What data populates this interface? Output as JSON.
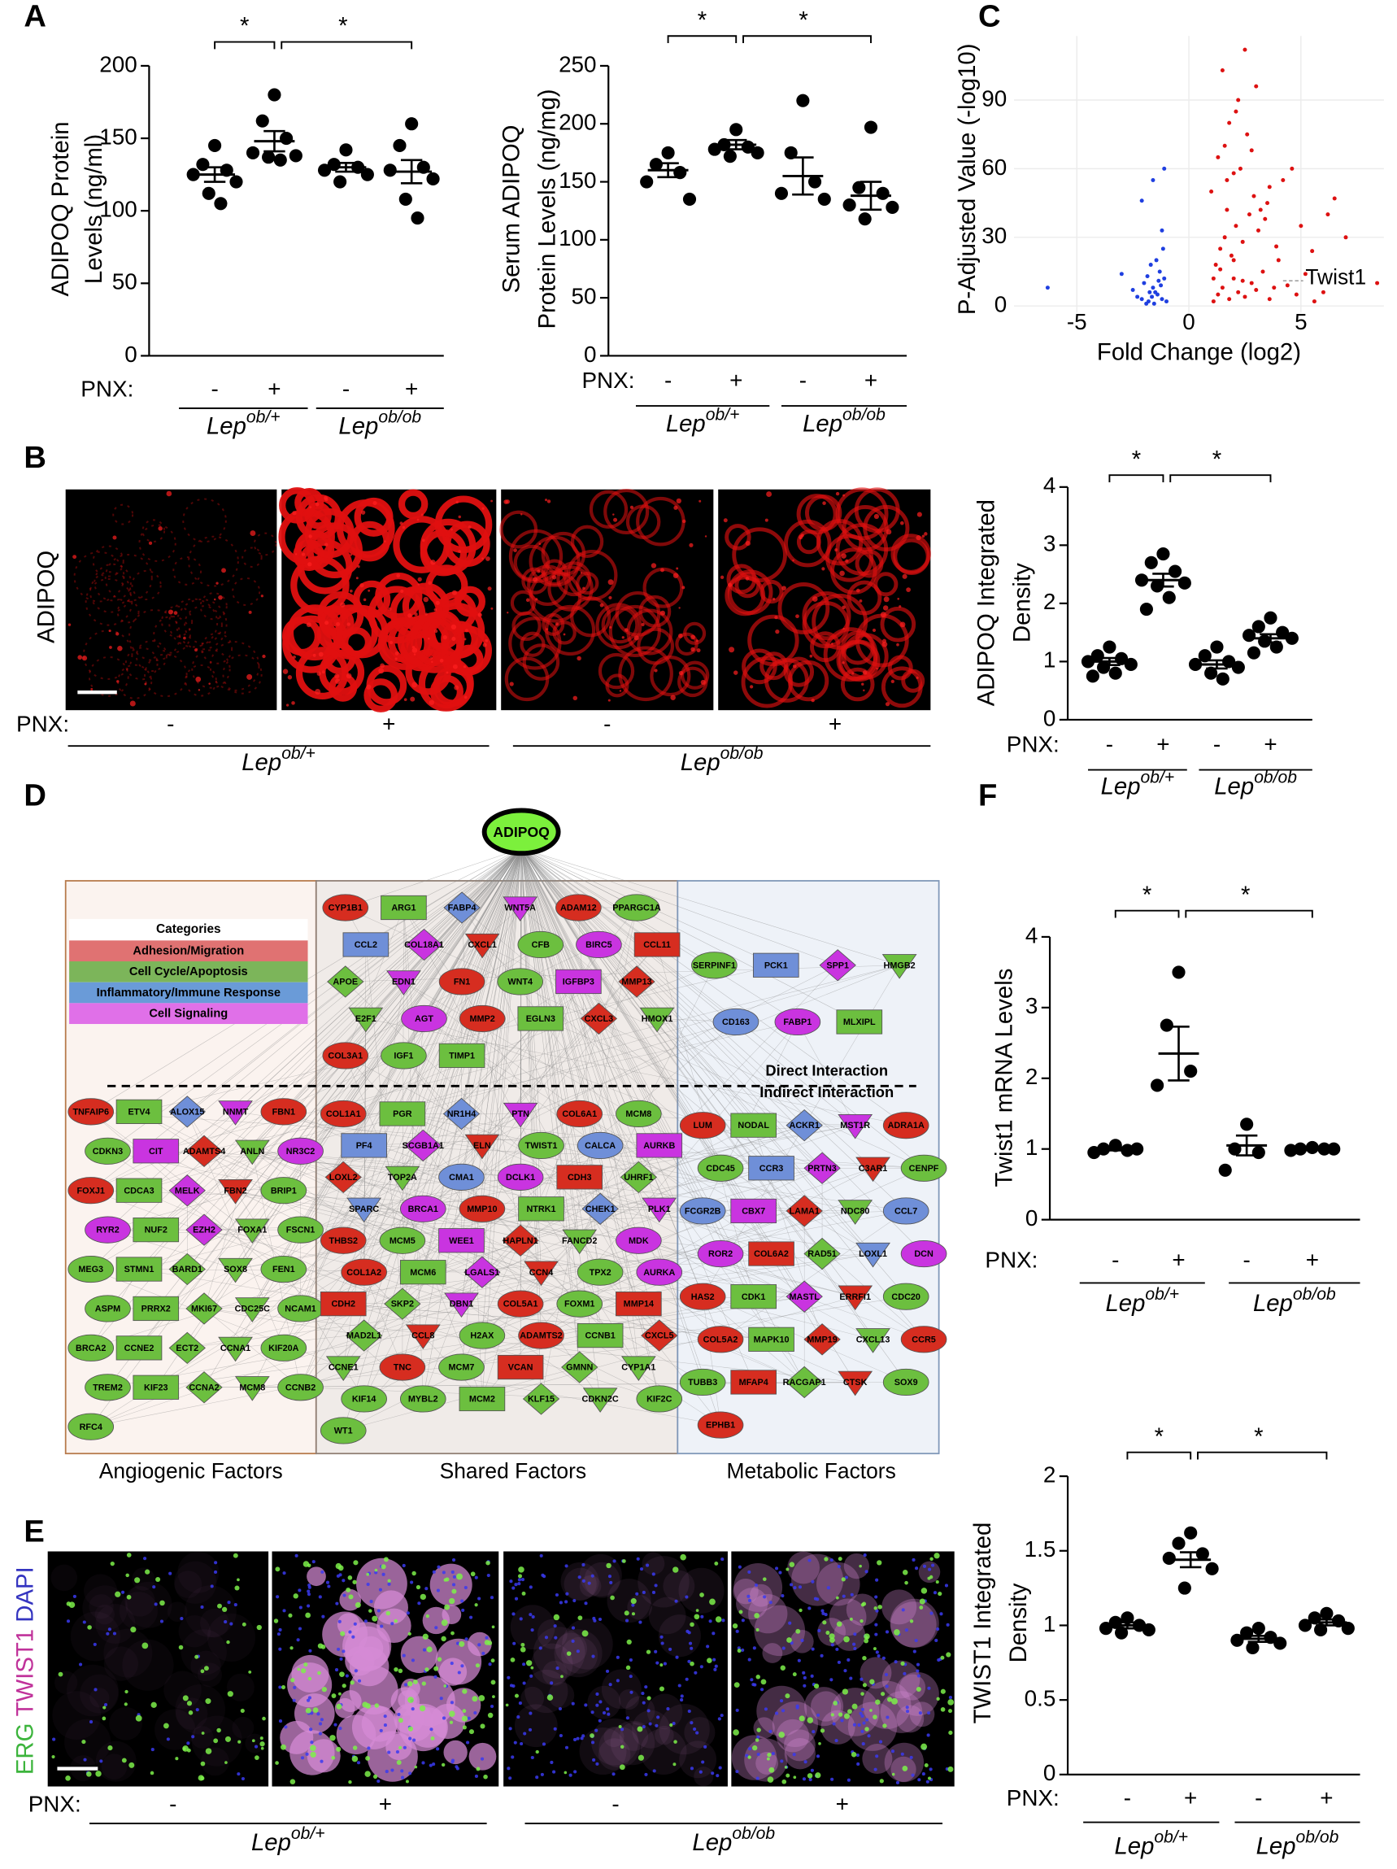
{
  "panel_labels": [
    "A",
    "B",
    "C",
    "D",
    "E",
    "F"
  ],
  "chart_data": [
    {
      "type": "dot",
      "ylabel": [
        "ADIPOQ Protein",
        "Levels (ng/ml)"
      ],
      "x_prefix": "PNX:",
      "categories": [
        "-",
        "+",
        "-",
        "+"
      ],
      "groups": [
        {
          "base": "Lep",
          "sup": "ob/+"
        },
        {
          "base": "Lep",
          "sup": "ob/ob"
        }
      ],
      "points": [
        [
          145,
          132,
          128,
          125,
          120,
          112,
          105
        ],
        [
          180,
          162,
          150,
          140,
          138,
          137,
          135
        ],
        [
          142,
          132,
          130,
          128,
          125,
          120
        ],
        [
          160,
          145,
          130,
          128,
          122,
          108,
          95
        ]
      ],
      "mean": [
        125,
        148,
        130,
        127
      ],
      "sem": [
        5,
        7,
        3,
        8
      ],
      "ylim": [
        0,
        200
      ],
      "yticks": [
        0,
        50,
        100,
        150,
        200
      ],
      "color": "#000000",
      "significance": [
        {
          "pair": [
            0,
            1
          ],
          "label": "*"
        },
        {
          "pair": [
            1,
            3
          ],
          "label": "*"
        }
      ]
    },
    {
      "type": "dot",
      "ylabel": [
        "Serum ADIPOQ",
        "Protein Levels (ng/mg)"
      ],
      "x_prefix": "PNX:",
      "categories": [
        "-",
        "+",
        "-",
        "+"
      ],
      "groups": [
        {
          "base": "Lep",
          "sup": "ob/+"
        },
        {
          "base": "Lep",
          "sup": "ob/ob"
        }
      ],
      "points": [
        [
          175,
          165,
          158,
          150,
          135
        ],
        [
          195,
          182,
          180,
          178,
          175,
          172
        ],
        [
          220,
          175,
          150,
          140,
          135
        ],
        [
          197,
          145,
          140,
          130,
          128,
          118
        ]
      ],
      "mean": [
        160,
        182,
        155,
        138
      ],
      "sem": [
        6,
        4,
        16,
        12
      ],
      "ylim": [
        0,
        250
      ],
      "yticks": [
        0,
        50,
        100,
        150,
        200,
        250
      ],
      "color": "#000000",
      "significance": [
        {
          "pair": [
            0,
            1
          ],
          "label": "*"
        },
        {
          "pair": [
            1,
            3
          ],
          "label": "*"
        }
      ]
    },
    {
      "type": "scatter",
      "xlabel": "Fold Change (log2)",
      "ylabel": "P-Adjusted Value (-log10)",
      "xlim": [
        -7.8,
        8.7
      ],
      "ylim": [
        -3,
        118
      ],
      "xticks": [
        -5,
        0,
        5
      ],
      "yticks": [
        0,
        30,
        60,
        90
      ],
      "grid": true,
      "annotation": "Twist1",
      "series": [
        {
          "color": "#1f3fe0",
          "x": [
            -1.2,
            -1.4,
            -1.6,
            -1.8,
            -2.0,
            -2.3,
            -1.1,
            -1.3,
            -1.5,
            -1.7,
            -1.9,
            -2.5,
            -1.0,
            -1.25,
            -1.45,
            -1.65,
            -1.85,
            -2.1,
            -1.15,
            -1.35,
            -1.55,
            -1.75,
            -6.3,
            -1.1,
            -2.1,
            -1.6,
            -1.2,
            -3.0
          ],
          "values": [
            3,
            5,
            8,
            2,
            10,
            4,
            12,
            15,
            6,
            18,
            1,
            7,
            2,
            9,
            20,
            4,
            13,
            3,
            25,
            11,
            1,
            6,
            8,
            60,
            46,
            55,
            33,
            14
          ]
        },
        {
          "color": "#dd1111",
          "x": [
            1.1,
            1.3,
            1.5,
            1.8,
            2.0,
            2.2,
            2.5,
            2.8,
            3.0,
            3.3,
            3.6,
            4.0,
            4.4,
            4.8,
            5.2,
            5.6,
            6.0,
            1.2,
            1.4,
            1.6,
            1.9,
            2.1,
            2.4,
            2.7,
            3.1,
            3.5,
            3.9,
            1.0,
            1.7,
            2.3,
            2.9,
            3.4,
            1.3,
            1.6,
            2.0,
            2.6,
            3.2,
            4.2,
            5.0,
            6.5,
            7.0,
            1.8,
            2.2,
            2.8,
            1.5,
            3.0,
            2.5,
            4.6,
            1.1,
            2.0,
            3.8,
            1.4,
            2.4,
            5.5,
            1.7,
            3.6,
            6.2,
            2.1,
            8.4
          ],
          "values": [
            2,
            5,
            8,
            3,
            12,
            6,
            4,
            10,
            7,
            15,
            3,
            20,
            9,
            5,
            14,
            2,
            6,
            18,
            25,
            30,
            22,
            35,
            28,
            40,
            33,
            45,
            26,
            50,
            55,
            60,
            48,
            38,
            65,
            70,
            58,
            75,
            42,
            55,
            35,
            47,
            30,
            80,
            90,
            68,
            103,
            96,
            112,
            60,
            12,
            20,
            8,
            16,
            11,
            24,
            42,
            52,
            40,
            85,
            10
          ]
        }
      ]
    },
    {
      "type": "dot",
      "ylabel": [
        "ADIPOQ Integrated",
        "Density"
      ],
      "x_prefix": "PNX:",
      "categories": [
        "-",
        "+",
        "-",
        "+"
      ],
      "groups": [
        {
          "base": "Lep",
          "sup": "ob/+"
        },
        {
          "base": "Lep",
          "sup": "ob/ob"
        }
      ],
      "points": [
        [
          1.25,
          1.1,
          1.05,
          1.0,
          0.95,
          0.9,
          0.8,
          0.75
        ],
        [
          2.85,
          2.7,
          2.55,
          2.4,
          2.35,
          2.3,
          2.1,
          1.9
        ],
        [
          1.25,
          1.1,
          1.0,
          0.95,
          0.9,
          0.8,
          0.7
        ],
        [
          1.75,
          1.6,
          1.5,
          1.45,
          1.4,
          1.35,
          1.25,
          1.15
        ]
      ],
      "mean": [
        1.0,
        2.4,
        0.95,
        1.4
      ],
      "sem": [
        0.06,
        0.11,
        0.07,
        0.07
      ],
      "ylim": [
        0,
        4
      ],
      "yticks": [
        0,
        1,
        2,
        3,
        4
      ],
      "color": "#000000",
      "significance": [
        {
          "pair": [
            0,
            1
          ],
          "label": "*"
        },
        {
          "pair": [
            1,
            3
          ],
          "label": "*"
        }
      ]
    },
    {
      "type": "dot",
      "ylabel": [
        "Twist1 mRNA Levels"
      ],
      "x_prefix": "PNX:",
      "categories": [
        "-",
        "+",
        "-",
        "+"
      ],
      "groups": [
        {
          "base": "Lep",
          "sup": "ob/+"
        },
        {
          "base": "Lep",
          "sup": "ob/ob"
        }
      ],
      "points": [
        [
          1.05,
          1.0,
          0.98,
          0.95,
          1.0
        ],
        [
          3.5,
          2.75,
          2.1,
          1.9
        ],
        [
          1.35,
          1.0,
          0.95,
          0.7
        ],
        [
          1.02,
          1.0,
          1.0,
          0.98,
          1.0
        ]
      ],
      "mean": [
        1.0,
        2.35,
        1.05,
        1.0
      ],
      "sem": [
        0.02,
        0.38,
        0.14,
        0.01
      ],
      "ylim": [
        0,
        4
      ],
      "yticks": [
        0,
        1,
        2,
        3,
        4
      ],
      "color": "#000000",
      "significance": [
        {
          "pair": [
            0,
            1
          ],
          "label": "*"
        },
        {
          "pair": [
            1,
            3
          ],
          "label": "*"
        }
      ]
    },
    {
      "type": "dot",
      "ylabel": [
        "TWIST1 Integrated",
        "Density"
      ],
      "x_prefix": "PNX:",
      "categories": [
        "-",
        "+",
        "-",
        "+"
      ],
      "groups": [
        {
          "base": "Lep",
          "sup": "ob/+"
        },
        {
          "base": "Lep",
          "sup": "ob/ob"
        }
      ],
      "points": [
        [
          1.05,
          1.02,
          1.0,
          0.98,
          0.97,
          0.95
        ],
        [
          1.62,
          1.55,
          1.48,
          1.45,
          1.38,
          1.25
        ],
        [
          0.98,
          0.95,
          0.92,
          0.9,
          0.88,
          0.85
        ],
        [
          1.08,
          1.05,
          1.03,
          1.0,
          0.98,
          0.97
        ]
      ],
      "mean": [
        1.0,
        1.44,
        0.91,
        1.02
      ],
      "sem": [
        0.02,
        0.05,
        0.02,
        0.02
      ],
      "ylim": [
        0,
        2
      ],
      "yticks": [
        0,
        {
          "value": 0.5,
          "label": "0.5"
        },
        1,
        {
          "value": 1.5,
          "label": "1.5"
        },
        2
      ],
      "color": "#000000",
      "significance": [
        {
          "pair": [
            0,
            1
          ],
          "label": "*"
        },
        {
          "pair": [
            1,
            3
          ],
          "label": "*"
        }
      ]
    }
  ],
  "image_panels": [
    {
      "channel": [
        {
          "text": "ADIPOQ",
          "color": "#000000"
        }
      ],
      "x_prefix": "PNX:",
      "categories": [
        "-",
        "+",
        "-",
        "+"
      ],
      "groups": [
        {
          "base": "Lep",
          "sup": "ob/+"
        },
        {
          "base": "Lep",
          "sup": "ob/ob"
        }
      ]
    },
    {
      "channel": [
        {
          "text": "ERG",
          "color": "#3cb43c"
        },
        {
          "text": "TWIST1",
          "color": "#c0329a"
        },
        {
          "text": "DAPI",
          "color": "#3434c0"
        }
      ],
      "x_prefix": "PNX:",
      "categories": [
        "-",
        "+",
        "-",
        "+"
      ],
      "groups": [
        {
          "base": "Lep",
          "sup": "ob/+"
        },
        {
          "base": "Lep",
          "sup": "ob/ob"
        }
      ]
    }
  ],
  "network": {
    "center": "ADIPOQ",
    "legend_title": "Categories",
    "categories": [
      {
        "name": "Adhesion/Migration",
        "color": "#e07272",
        "node": "#d62d20"
      },
      {
        "name": "Cell Cycle/Apoptosis",
        "color": "#7cb55a",
        "node": "#6cbf3f"
      },
      {
        "name": "Inflammatory/Immune Response",
        "color": "#6a9bd8",
        "node": "#6f8fd8"
      },
      {
        "name": "Cell Signaling",
        "color": "#e070e8",
        "node": "#c934e0"
      }
    ],
    "direct_label": "Direct Interaction",
    "indirect_label": "Indirect Interaction",
    "regions": [
      {
        "title": "Angiogenic Factors",
        "title_color": "#b0531c",
        "lower": [
          [
            "TNFAIP6",
            "FBN1",
            "ADAMTS4",
            "FOXJ1",
            "FBN2"
          ],
          [
            "ETV4",
            "CDKN3",
            "ANLN",
            "CDCA3",
            "BRIP1",
            "NUF2",
            "FOXA1",
            "FSCN1",
            "MEG3",
            "STMN1",
            "BARD1",
            "SOX8",
            "FEN1",
            "ASPM",
            "PRRX2",
            "MKI67",
            "CDC25C",
            "NCAM1",
            "BRCA2",
            "CCNE2",
            "ECT2",
            "CCNA1",
            "KIF20A",
            "TREM2",
            "KIF23",
            "CCNA2",
            "MCM8",
            "CCNB2",
            "RFC4"
          ],
          [
            "ALOX15"
          ],
          [
            "NNMT",
            "CIT",
            "NR3C2",
            "MELK",
            "RYR2",
            "EZH2"
          ]
        ]
      },
      {
        "title": "Shared Factors",
        "title_color": "#000000",
        "upper": [
          [
            "CYP1B1",
            "ADAM12",
            "CXCL1",
            "CCL11",
            "FN1",
            "MMP13",
            "MMP2",
            "CXCL3",
            "COL3A1"
          ],
          [
            "ARG1",
            "PPARGC1A",
            "CFB",
            "APOE",
            "WNT4",
            "E2F1",
            "EGLN3",
            "HMOX1",
            "IGF1",
            "TIMP1"
          ],
          [
            "FABP4",
            "CCL2"
          ],
          [
            "WNT5A",
            "COL18A1",
            "BIRC5",
            "EDN1",
            "IGFBP3",
            "AGT"
          ]
        ],
        "lower": [
          [
            "COL1A1",
            "COL6A1",
            "ELN",
            "LOXL2",
            "CDH3",
            "MMP10",
            "THBS2",
            "HAPLN1",
            "COL1A2",
            "CCN4",
            "CDH2",
            "COL5A1",
            "MMP14",
            "CCL8",
            "ADAMTS2",
            "CXCL5",
            "TNC",
            "VCAN"
          ],
          [
            "PGR",
            "MCM8",
            "TWIST1",
            "TOP2A",
            "UHRF1",
            "NTRK1",
            "MCM5",
            "FANCD2",
            "MCM6",
            "TPX2",
            "SKP2",
            "FOXM1",
            "MAD2L1",
            "H2AX",
            "CCNB1",
            "CCNE1",
            "MCM7",
            "GMNN",
            "CYP1A1",
            "KIF14",
            "MYBL2",
            "MCM2",
            "KLF15",
            "CDKN2C",
            "KIF2C",
            "WT1"
          ],
          [
            "NR1H4",
            "PF4",
            "CALCA",
            "CMA1",
            "SPARC",
            "CHEK1"
          ],
          [
            "PTN",
            "SCGB1A1",
            "AURKB",
            "DCLK1",
            "BRCA1",
            "PLK1",
            "WEE1",
            "MDK",
            "LGALS1",
            "AURKA",
            "DBN1"
          ]
        ]
      },
      {
        "title": "Metabolic Factors",
        "title_color": "#2f4f9a",
        "upper": [
          [],
          [
            "SERPINF1",
            "HMGB2",
            "MLXIPL"
          ],
          [
            "PCK1",
            "CD163"
          ],
          [
            "SPP1",
            "FABP1"
          ]
        ],
        "lower": [
          [
            "LUM",
            "ADRA1A",
            "C3AR1",
            "LAMA1",
            "COL6A2",
            "HAS2",
            "ERRFI1",
            "COL5A2",
            "MMP19",
            "CCR5",
            "MFAP4",
            "CTSK",
            "EPHB1"
          ],
          [
            "NODAL",
            "CDC45",
            "CENPF",
            "NDC80",
            "RAD51",
            "CDK1",
            "CDC20",
            "MAPK10",
            "CXCL13",
            "TUBB3",
            "RACGAP1",
            "SOX9"
          ],
          [
            "ACKR1",
            "CCR3",
            "FCGR2B",
            "CCL7",
            "LOXL1"
          ],
          [
            "MST1R",
            "PRTN3",
            "CBX7",
            "ROR2",
            "DCN",
            "MASTL"
          ]
        ]
      }
    ]
  }
}
